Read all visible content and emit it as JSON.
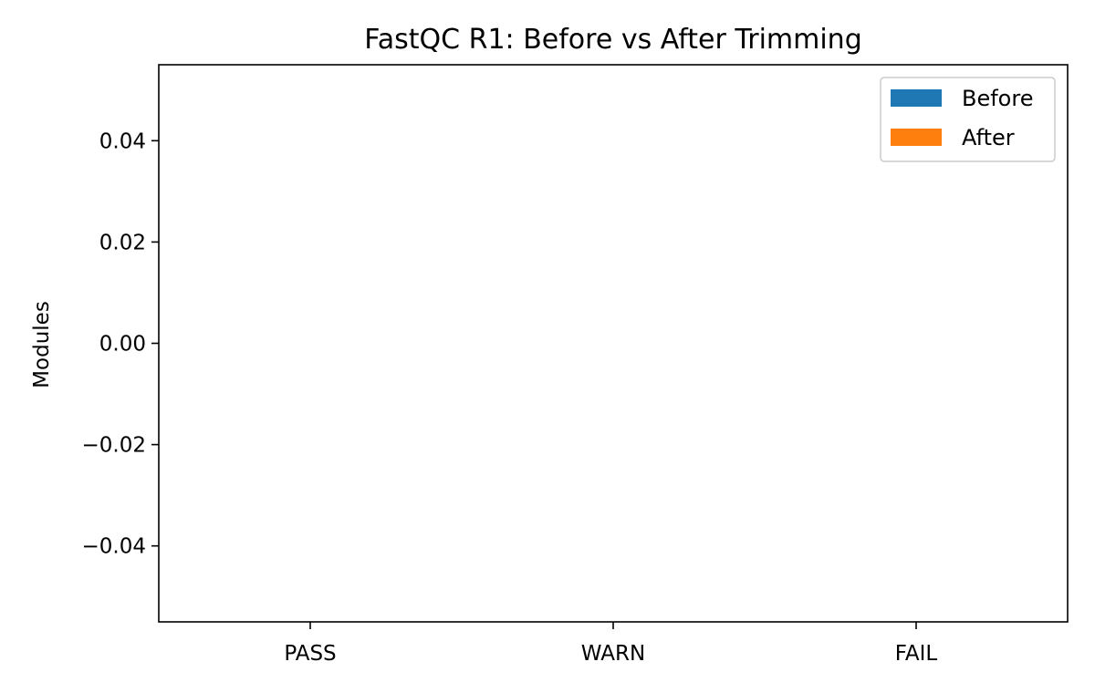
{
  "chart_data": {
    "type": "bar",
    "title": "FastQC R1: Before vs After Trimming",
    "xlabel": "",
    "ylabel": "Modules",
    "categories": [
      "PASS",
      "WARN",
      "FAIL"
    ],
    "series": [
      {
        "name": "Before",
        "values": [
          0,
          0,
          0
        ],
        "color": "#1f77b4"
      },
      {
        "name": "After",
        "values": [
          0,
          0,
          0
        ],
        "color": "#ff7f0e"
      }
    ],
    "ylim": [
      -0.055,
      0.055
    ],
    "yticks": [
      {
        "value": 0.04,
        "label": "0.04"
      },
      {
        "value": 0.02,
        "label": "0.02"
      },
      {
        "value": 0.0,
        "label": "0.00"
      },
      {
        "value": -0.02,
        "label": "−0.02"
      },
      {
        "value": -0.04,
        "label": "−0.04"
      }
    ],
    "grid": false,
    "legend_position": "top-right"
  }
}
